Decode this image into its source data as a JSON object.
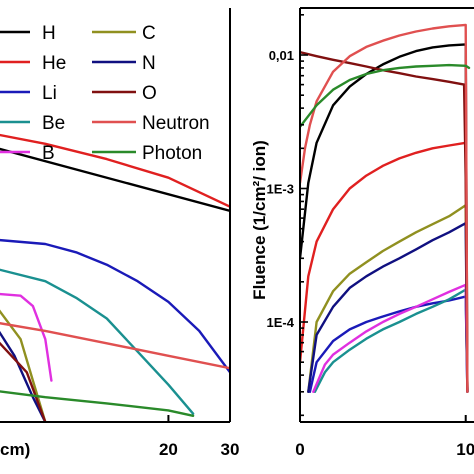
{
  "chart_data": [
    {
      "type": "line",
      "panel": "left",
      "xlabel": "cm)",
      "ylabel": "",
      "xlim": [
        -8,
        30
      ],
      "x_ticks": [
        20,
        30
      ],
      "ylim": [
        0,
        1
      ],
      "legend_placement": "top",
      "series": [
        {
          "name": "H",
          "color": "#000000",
          "x": [
            -8,
            30
          ],
          "y": [
            0.662,
            0.51
          ]
        },
        {
          "name": "He",
          "color": "#e02020",
          "x": [
            -8,
            0,
            10,
            20,
            30
          ],
          "y": [
            0.695,
            0.672,
            0.635,
            0.59,
            0.52
          ]
        },
        {
          "name": "Li",
          "color": "#1a1ab8",
          "x": [
            -8,
            0,
            5,
            10,
            15,
            20,
            25,
            30
          ],
          "y": [
            0.44,
            0.43,
            0.41,
            0.38,
            0.34,
            0.29,
            0.22,
            0.12
          ]
        },
        {
          "name": "Be",
          "color": "#1a9090",
          "x": [
            -8,
            0,
            5,
            10,
            15,
            20,
            24
          ],
          "y": [
            0.37,
            0.34,
            0.3,
            0.25,
            0.17,
            0.09,
            0.02
          ]
        },
        {
          "name": "B",
          "color": "#e030e0",
          "x": [
            -8,
            -4,
            -2,
            0,
            1
          ],
          "y": [
            0.31,
            0.305,
            0.28,
            0.2,
            0.1
          ]
        },
        {
          "name": "C",
          "color": "#909020",
          "x": [
            -8,
            -4,
            -2,
            0
          ],
          "y": [
            0.28,
            0.2,
            0.1,
            0.0
          ]
        },
        {
          "name": "N",
          "color": "#101080",
          "x": [
            -8,
            -5,
            -2,
            0
          ],
          "y": [
            0.23,
            0.16,
            0.06,
            0.0
          ]
        },
        {
          "name": "O",
          "color": "#801010",
          "x": [
            -8,
            -3,
            -1,
            0
          ],
          "y": [
            0.2,
            0.12,
            0.04,
            0.0
          ]
        },
        {
          "name": "Neutron",
          "color": "#e05050",
          "x": [
            -8,
            0,
            10,
            20,
            30
          ],
          "y": [
            0.24,
            0.22,
            0.19,
            0.16,
            0.13
          ]
        },
        {
          "name": "Photon",
          "color": "#2a8a2a",
          "x": [
            -8,
            0,
            10,
            20,
            24
          ],
          "y": [
            0.075,
            0.06,
            0.045,
            0.028,
            0.015
          ]
        }
      ]
    },
    {
      "type": "line",
      "panel": "right",
      "ylabel": "Fluence (1/cm²/ ion)",
      "yscale": "log",
      "ylim": [
        3e-05,
        0.02
      ],
      "y_ticks": [
        {
          "value": 0.0001,
          "label": "1E-4"
        },
        {
          "value": 0.001,
          "label": "1E-3"
        },
        {
          "value": 0.01,
          "label": "0,01"
        }
      ],
      "xlim": [
        0,
        10.5
      ],
      "x_ticks": [
        {
          "value": 0,
          "label": "0"
        },
        {
          "value": 10,
          "label": "10"
        }
      ],
      "series": [
        {
          "name": "H",
          "color": "#000000",
          "x": [
            0,
            0.5,
            1,
            2,
            3,
            4,
            5,
            6,
            7,
            8,
            9,
            10,
            10.1
          ],
          "y": [
            0.0003,
            0.0011,
            0.0022,
            0.0042,
            0.0058,
            0.0072,
            0.0085,
            0.0097,
            0.0107,
            0.0114,
            0.0118,
            0.012,
            3e-05
          ]
        },
        {
          "name": "He",
          "color": "#e02020",
          "x": [
            0,
            0.5,
            1,
            2,
            3,
            4,
            5,
            6,
            7,
            8,
            9,
            10,
            10.1
          ],
          "y": [
            5e-05,
            0.00022,
            0.0004,
            0.0007,
            0.001,
            0.00125,
            0.00148,
            0.00168,
            0.00185,
            0.002,
            0.0021,
            0.0022,
            3e-05
          ]
        },
        {
          "name": "Li",
          "color": "#1a1ab8",
          "x": [
            0.6,
            1,
            2,
            3,
            4,
            5,
            6,
            7,
            8,
            9,
            10,
            10.1
          ],
          "y": [
            3e-05,
            5e-05,
            7.2e-05,
            8.8e-05,
            0.0001,
            0.00011,
            0.00012,
            0.00013,
            0.000138,
            0.000145,
            0.000155,
            3e-05
          ]
        },
        {
          "name": "Be",
          "color": "#1a9090",
          "x": [
            0.9,
            1.5,
            2,
            3,
            4,
            5,
            6,
            7,
            8,
            9,
            10,
            10.1
          ],
          "y": [
            3e-05,
            4.2e-05,
            5e-05,
            6.2e-05,
            7.5e-05,
            8.8e-05,
            0.0001,
            0.000115,
            0.00013,
            0.000148,
            0.000175,
            3e-05
          ]
        },
        {
          "name": "B",
          "color": "#e030e0",
          "x": [
            0.8,
            1.5,
            2,
            3,
            4,
            5,
            6,
            7,
            8,
            9,
            10,
            10.1
          ],
          "y": [
            3e-05,
            4.8e-05,
            5.7e-05,
            7e-05,
            8.5e-05,
            0.0001,
            0.000115,
            0.00013,
            0.000148,
            0.000168,
            0.00019,
            3e-05
          ]
        },
        {
          "name": "C",
          "color": "#909020",
          "x": [
            0.5,
            1,
            2,
            3,
            4,
            5,
            6,
            7,
            8,
            9,
            10,
            10.1
          ],
          "y": [
            3e-05,
            0.0001,
            0.00017,
            0.00023,
            0.00028,
            0.00034,
            0.0004,
            0.00047,
            0.00054,
            0.00062,
            0.00075,
            3e-05
          ]
        },
        {
          "name": "N",
          "color": "#101080",
          "x": [
            0.5,
            1,
            2,
            3,
            4,
            5,
            6,
            7,
            8,
            9,
            10,
            10.1
          ],
          "y": [
            3e-05,
            8e-05,
            0.00013,
            0.00018,
            0.00022,
            0.00026,
            0.0003,
            0.00035,
            0.00041,
            0.00047,
            0.00055,
            3e-05
          ]
        },
        {
          "name": "O",
          "color": "#801010",
          "x": [
            0,
            1,
            2,
            3,
            4,
            5,
            6,
            7,
            8,
            9,
            9.9,
            10,
            10.1
          ],
          "y": [
            0.0105,
            0.0098,
            0.0092,
            0.0087,
            0.0082,
            0.0077,
            0.0073,
            0.0069,
            0.0066,
            0.0063,
            0.006,
            0.0012,
            3e-05
          ]
        },
        {
          "name": "Neutron",
          "color": "#e05050",
          "x": [
            0,
            0.3,
            0.6,
            1,
            2,
            3,
            4,
            5,
            6,
            7,
            8,
            9,
            10,
            10.1
          ],
          "y": [
            0.0011,
            0.002,
            0.003,
            0.0045,
            0.0075,
            0.0098,
            0.0115,
            0.0128,
            0.014,
            0.015,
            0.0158,
            0.0164,
            0.0168,
            3e-05
          ]
        },
        {
          "name": "Photon",
          "color": "#2a8a2a",
          "x": [
            0,
            1,
            2,
            3,
            4,
            5,
            6,
            7,
            8,
            9,
            10,
            10.2
          ],
          "y": [
            0.0029,
            0.0042,
            0.0055,
            0.0065,
            0.0072,
            0.0077,
            0.008,
            0.0082,
            0.0083,
            0.0084,
            0.0083,
            0.008
          ]
        }
      ]
    }
  ],
  "legend": {
    "left_column": [
      "H",
      "He",
      "Li",
      "Be",
      "B"
    ],
    "right_column": [
      "C",
      "N",
      "O",
      "Neutron",
      "Photon"
    ],
    "colors": {
      "H": "#000000",
      "He": "#e02020",
      "Li": "#1a1ab8",
      "Be": "#1a9090",
      "B": "#e030e0",
      "C": "#909020",
      "N": "#101080",
      "O": "#801010",
      "Neutron": "#e05050",
      "Photon": "#2a8a2a"
    }
  }
}
